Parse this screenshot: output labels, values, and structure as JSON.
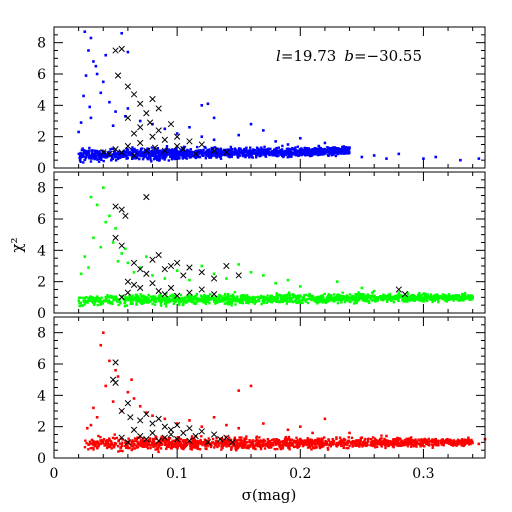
{
  "chart_data": {
    "type": "scatter",
    "annotation": {
      "l_label": "l",
      "l_value": "=19.73",
      "b_label": "b",
      "b_value": "=−30.55"
    },
    "xlabel": "σ(mag)",
    "ylabel": "χ²",
    "xlim": [
      0,
      0.35
    ],
    "x_ticks": [
      "0",
      "0.1",
      "0.2",
      "0.3"
    ],
    "x_tick_values": [
      0,
      0.1,
      0.2,
      0.3
    ],
    "ylim": [
      0,
      9
    ],
    "y_ticks": [
      "0",
      "2",
      "4",
      "6",
      "8"
    ],
    "y_tick_values": [
      0,
      2,
      4,
      6,
      8
    ],
    "grid": false,
    "panels": [
      {
        "color": "#0000ff",
        "band": {
          "x_start": 0.02,
          "x_end": 0.24,
          "y_center_start": 0.8,
          "y_center_end": 1.1,
          "width": 0.6
        },
        "points": [
          [
            0.025,
            8.7
          ],
          [
            0.03,
            8.3
          ],
          [
            0.028,
            7.5
          ],
          [
            0.032,
            6.8
          ],
          [
            0.035,
            6.0
          ],
          [
            0.04,
            5.5
          ],
          [
            0.038,
            4.8
          ],
          [
            0.045,
            4.2
          ],
          [
            0.05,
            3.6
          ],
          [
            0.03,
            3.2
          ],
          [
            0.06,
            3.8
          ],
          [
            0.07,
            3.0
          ],
          [
            0.08,
            2.8
          ],
          [
            0.09,
            2.5
          ],
          [
            0.1,
            2.2
          ],
          [
            0.12,
            2.0
          ],
          [
            0.11,
            2.6
          ],
          [
            0.13,
            1.8
          ],
          [
            0.15,
            2.1
          ],
          [
            0.17,
            2.4
          ],
          [
            0.12,
            4.0
          ],
          [
            0.125,
            4.1
          ],
          [
            0.13,
            3.2
          ],
          [
            0.042,
            7.2
          ],
          [
            0.055,
            8.6
          ],
          [
            0.06,
            7.4
          ],
          [
            0.22,
            1.6
          ],
          [
            0.25,
            0.7
          ],
          [
            0.26,
            0.8
          ],
          [
            0.27,
            0.6
          ],
          [
            0.28,
            0.9
          ],
          [
            0.3,
            0.6
          ],
          [
            0.31,
            0.7
          ],
          [
            0.33,
            0.5
          ],
          [
            0.345,
            0.6
          ],
          [
            0.24,
            1.3
          ],
          [
            0.23,
            1.2
          ],
          [
            0.215,
            1.4
          ],
          [
            0.2,
            1.9
          ],
          [
            0.19,
            1.5
          ],
          [
            0.18,
            1.7
          ],
          [
            0.16,
            2.8
          ],
          [
            0.02,
            2.3
          ],
          [
            0.022,
            2.9
          ],
          [
            0.024,
            4.6
          ],
          [
            0.026,
            5.9
          ],
          [
            0.034,
            6.5
          ],
          [
            0.029,
            3.9
          ],
          [
            0.048,
            2.7
          ],
          [
            0.058,
            3.3
          ]
        ],
        "crosses": [
          [
            0.05,
            7.5
          ],
          [
            0.055,
            7.6
          ],
          [
            0.052,
            5.9
          ],
          [
            0.06,
            5.2
          ],
          [
            0.065,
            4.7
          ],
          [
            0.07,
            4.1
          ],
          [
            0.08,
            4.4
          ],
          [
            0.075,
            3.5
          ],
          [
            0.07,
            2.6
          ],
          [
            0.065,
            2.2
          ],
          [
            0.08,
            2.0
          ],
          [
            0.085,
            2.4
          ],
          [
            0.09,
            1.8
          ],
          [
            0.095,
            2.8
          ],
          [
            0.1,
            2.0
          ],
          [
            0.11,
            1.7
          ],
          [
            0.12,
            1.5
          ],
          [
            0.05,
            1.2
          ],
          [
            0.06,
            1.4
          ],
          [
            0.07,
            1.6
          ],
          [
            0.075,
            1.1
          ],
          [
            0.082,
            1.3
          ],
          [
            0.04,
            1.0
          ],
          [
            0.045,
            0.9
          ],
          [
            0.055,
            1.0
          ],
          [
            0.065,
            0.8
          ],
          [
            0.09,
            1.1
          ],
          [
            0.1,
            1.4
          ],
          [
            0.105,
            1.2
          ],
          [
            0.115,
            0.9
          ],
          [
            0.13,
            1.1
          ],
          [
            0.14,
            1.0
          ],
          [
            0.06,
            3.2
          ],
          [
            0.085,
            3.8
          ],
          [
            0.078,
            2.9
          ]
        ]
      },
      {
        "color": "#00ff00",
        "band": {
          "x_start": 0.02,
          "x_end": 0.34,
          "y_center_start": 0.8,
          "y_center_end": 1.0,
          "width": 0.55
        },
        "points": [
          [
            0.03,
            7.4
          ],
          [
            0.035,
            6.9
          ],
          [
            0.04,
            8.0
          ],
          [
            0.045,
            6.2
          ],
          [
            0.05,
            5.4
          ],
          [
            0.032,
            4.8
          ],
          [
            0.038,
            4.2
          ],
          [
            0.055,
            3.8
          ],
          [
            0.06,
            3.2
          ],
          [
            0.065,
            2.6
          ],
          [
            0.07,
            2.9
          ],
          [
            0.08,
            2.4
          ],
          [
            0.09,
            2.2
          ],
          [
            0.1,
            2.7
          ],
          [
            0.11,
            2.1
          ],
          [
            0.12,
            3.0
          ],
          [
            0.13,
            2.5
          ],
          [
            0.14,
            2.2
          ],
          [
            0.15,
            3.1
          ],
          [
            0.16,
            2.6
          ],
          [
            0.17,
            2.4
          ],
          [
            0.18,
            1.9
          ],
          [
            0.19,
            2.1
          ],
          [
            0.2,
            1.7
          ],
          [
            0.23,
            2.0
          ],
          [
            0.25,
            1.6
          ],
          [
            0.26,
            1.4
          ],
          [
            0.28,
            1.3
          ],
          [
            0.3,
            1.2
          ],
          [
            0.32,
            1.1
          ],
          [
            0.33,
            0.9
          ],
          [
            0.34,
            1.0
          ],
          [
            0.025,
            3.6
          ],
          [
            0.028,
            2.9
          ],
          [
            0.042,
            5.8
          ],
          [
            0.048,
            4.5
          ],
          [
            0.052,
            3.3
          ],
          [
            0.022,
            2.5
          ],
          [
            0.058,
            4.1
          ],
          [
            0.075,
            3.6
          ]
        ],
        "crosses": [
          [
            0.055,
            6.6
          ],
          [
            0.05,
            6.8
          ],
          [
            0.058,
            6.2
          ],
          [
            0.05,
            4.8
          ],
          [
            0.055,
            4.3
          ],
          [
            0.075,
            7.4
          ],
          [
            0.065,
            3.2
          ],
          [
            0.07,
            2.8
          ],
          [
            0.075,
            2.5
          ],
          [
            0.08,
            3.4
          ],
          [
            0.085,
            3.7
          ],
          [
            0.09,
            2.8
          ],
          [
            0.095,
            3.0
          ],
          [
            0.1,
            3.2
          ],
          [
            0.105,
            2.4
          ],
          [
            0.11,
            2.9
          ],
          [
            0.12,
            2.6
          ],
          [
            0.13,
            2.2
          ],
          [
            0.14,
            3.0
          ],
          [
            0.15,
            2.4
          ],
          [
            0.06,
            2.0
          ],
          [
            0.065,
            1.8
          ],
          [
            0.07,
            1.6
          ],
          [
            0.08,
            1.9
          ],
          [
            0.085,
            1.4
          ],
          [
            0.09,
            1.2
          ],
          [
            0.095,
            1.6
          ],
          [
            0.1,
            1.1
          ],
          [
            0.11,
            1.3
          ],
          [
            0.12,
            1.5
          ],
          [
            0.13,
            1.2
          ],
          [
            0.055,
            1.0
          ],
          [
            0.06,
            1.3
          ],
          [
            0.28,
            1.5
          ],
          [
            0.285,
            1.2
          ]
        ]
      },
      {
        "color": "#ff0000",
        "band": {
          "x_start": 0.025,
          "x_end": 0.34,
          "y_center_start": 0.9,
          "y_center_end": 1.0,
          "width": 0.65
        },
        "points": [
          [
            0.04,
            8.0
          ],
          [
            0.038,
            7.2
          ],
          [
            0.045,
            6.2
          ],
          [
            0.05,
            5.6
          ],
          [
            0.052,
            5.2
          ],
          [
            0.042,
            4.6
          ],
          [
            0.06,
            4.2
          ],
          [
            0.065,
            3.8
          ],
          [
            0.07,
            3.3
          ],
          [
            0.075,
            2.9
          ],
          [
            0.08,
            2.7
          ],
          [
            0.09,
            2.5
          ],
          [
            0.1,
            2.2
          ],
          [
            0.11,
            2.4
          ],
          [
            0.12,
            2.0
          ],
          [
            0.13,
            2.6
          ],
          [
            0.14,
            2.1
          ],
          [
            0.15,
            1.9
          ],
          [
            0.16,
            4.6
          ],
          [
            0.17,
            2.2
          ],
          [
            0.19,
            1.8
          ],
          [
            0.2,
            2.0
          ],
          [
            0.21,
            1.6
          ],
          [
            0.22,
            2.5
          ],
          [
            0.24,
            1.6
          ],
          [
            0.25,
            1.3
          ],
          [
            0.27,
            1.4
          ],
          [
            0.29,
            1.3
          ],
          [
            0.31,
            1.2
          ],
          [
            0.33,
            1.1
          ],
          [
            0.345,
            0.9
          ],
          [
            0.35,
            1.2
          ],
          [
            0.032,
            3.2
          ],
          [
            0.035,
            2.6
          ],
          [
            0.048,
            3.6
          ],
          [
            0.055,
            3.0
          ],
          [
            0.063,
            5.0
          ],
          [
            0.03,
            2.1
          ],
          [
            0.027,
            1.9
          ],
          [
            0.15,
            4.3
          ]
        ],
        "crosses": [
          [
            0.05,
            6.1
          ],
          [
            0.048,
            5.0
          ],
          [
            0.05,
            4.8
          ],
          [
            0.06,
            3.5
          ],
          [
            0.055,
            3.0
          ],
          [
            0.062,
            2.6
          ],
          [
            0.07,
            2.4
          ],
          [
            0.075,
            2.8
          ],
          [
            0.08,
            2.2
          ],
          [
            0.085,
            2.5
          ],
          [
            0.09,
            2.0
          ],
          [
            0.095,
            1.8
          ],
          [
            0.1,
            2.1
          ],
          [
            0.105,
            1.6
          ],
          [
            0.11,
            1.9
          ],
          [
            0.12,
            1.7
          ],
          [
            0.13,
            1.5
          ],
          [
            0.14,
            1.3
          ],
          [
            0.065,
            1.8
          ],
          [
            0.07,
            1.4
          ],
          [
            0.075,
            1.2
          ],
          [
            0.08,
            1.6
          ],
          [
            0.085,
            1.1
          ],
          [
            0.09,
            1.3
          ],
          [
            0.095,
            1.5
          ],
          [
            0.1,
            1.2
          ],
          [
            0.11,
            1.1
          ],
          [
            0.115,
            1.4
          ],
          [
            0.125,
            1.0
          ],
          [
            0.135,
            1.2
          ],
          [
            0.145,
            1.0
          ],
          [
            0.06,
            1.0
          ],
          [
            0.055,
            1.3
          ]
        ]
      }
    ]
  }
}
